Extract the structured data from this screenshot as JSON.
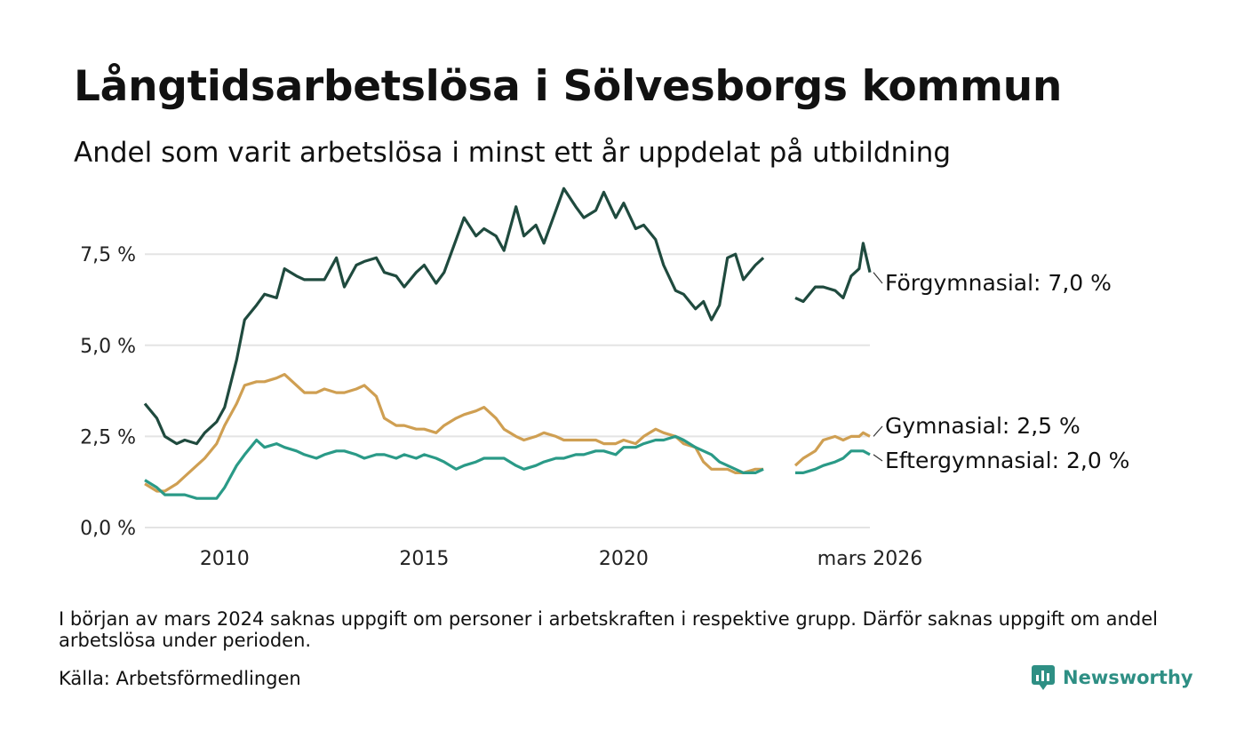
{
  "title": "Långtidsarbetslösa i Sölvesborgs kommun",
  "subtitle": "Andel som varit arbetslösa i minst ett år uppdelat på utbildning",
  "footnote": "I början av mars 2024 saknas uppgift om personer i arbetskraften i respektive grupp. Därför saknas uppgift om andel arbetslösa under perioden.",
  "source": "Källa: Arbetsförmedlingen",
  "brand": "Newsworthy",
  "colors": {
    "forgymnasial": "#1f4a3e",
    "gymnasial": "#cf9f52",
    "eftergymnasial": "#2a9a87",
    "grid": "#e4e4e4",
    "brand": "#2e8f84"
  },
  "chart_data": {
    "type": "line",
    "title": "Långtidsarbetslösa i Sölvesborgs kommun",
    "xlabel": "",
    "ylabel": "",
    "x_range": [
      2008.0,
      2026.17
    ],
    "ylim": [
      0,
      9.6
    ],
    "y_ticks": [
      0,
      2.5,
      5.0,
      7.5
    ],
    "y_tick_labels": [
      "0,0 %",
      "2,5 %",
      "5,0 %",
      "7,5 %"
    ],
    "x_ticks": [
      2010,
      2015,
      2020,
      2026.17
    ],
    "x_tick_labels": [
      "2010",
      "2015",
      "2020",
      "mars 2026"
    ],
    "gap": [
      2024.0,
      2024.3
    ],
    "series": [
      {
        "name": "Förgymnasial",
        "end_label": "Förgymnasial: 7,0 %",
        "color_key": "forgymnasial",
        "points": [
          [
            2008.0,
            3.4
          ],
          [
            2008.3,
            3.0
          ],
          [
            2008.5,
            2.5
          ],
          [
            2008.8,
            2.3
          ],
          [
            2009.0,
            2.4
          ],
          [
            2009.3,
            2.3
          ],
          [
            2009.5,
            2.6
          ],
          [
            2009.8,
            2.9
          ],
          [
            2010.0,
            3.3
          ],
          [
            2010.3,
            4.6
          ],
          [
            2010.5,
            5.7
          ],
          [
            2010.8,
            6.1
          ],
          [
            2011.0,
            6.4
          ],
          [
            2011.3,
            6.3
          ],
          [
            2011.5,
            7.1
          ],
          [
            2011.8,
            6.9
          ],
          [
            2012.0,
            6.8
          ],
          [
            2012.3,
            6.8
          ],
          [
            2012.5,
            6.8
          ],
          [
            2012.8,
            7.4
          ],
          [
            2013.0,
            6.6
          ],
          [
            2013.3,
            7.2
          ],
          [
            2013.5,
            7.3
          ],
          [
            2013.8,
            7.4
          ],
          [
            2014.0,
            7.0
          ],
          [
            2014.3,
            6.9
          ],
          [
            2014.5,
            6.6
          ],
          [
            2014.8,
            7.0
          ],
          [
            2015.0,
            7.2
          ],
          [
            2015.3,
            6.7
          ],
          [
            2015.5,
            7.0
          ],
          [
            2015.8,
            7.9
          ],
          [
            2016.0,
            8.5
          ],
          [
            2016.3,
            8.0
          ],
          [
            2016.5,
            8.2
          ],
          [
            2016.8,
            8.0
          ],
          [
            2017.0,
            7.6
          ],
          [
            2017.3,
            8.8
          ],
          [
            2017.5,
            8.0
          ],
          [
            2017.8,
            8.3
          ],
          [
            2018.0,
            7.8
          ],
          [
            2018.3,
            8.7
          ],
          [
            2018.5,
            9.3
          ],
          [
            2018.8,
            8.8
          ],
          [
            2019.0,
            8.5
          ],
          [
            2019.3,
            8.7
          ],
          [
            2019.5,
            9.2
          ],
          [
            2019.8,
            8.5
          ],
          [
            2020.0,
            8.9
          ],
          [
            2020.3,
            8.2
          ],
          [
            2020.5,
            8.3
          ],
          [
            2020.8,
            7.9
          ],
          [
            2021.0,
            7.2
          ],
          [
            2021.3,
            6.5
          ],
          [
            2021.5,
            6.4
          ],
          [
            2021.8,
            6.0
          ],
          [
            2022.0,
            6.2
          ],
          [
            2022.2,
            5.7
          ],
          [
            2022.4,
            6.1
          ],
          [
            2022.6,
            7.4
          ],
          [
            2022.8,
            7.5
          ],
          [
            2023.0,
            6.8
          ],
          [
            2023.3,
            7.2
          ],
          [
            2023.5,
            7.4
          ],
          [
            2024.3,
            6.3
          ],
          [
            2024.5,
            6.2
          ],
          [
            2024.8,
            6.6
          ],
          [
            2025.0,
            6.6
          ],
          [
            2025.3,
            6.5
          ],
          [
            2025.5,
            6.3
          ],
          [
            2025.7,
            6.9
          ],
          [
            2025.9,
            7.1
          ],
          [
            2026.0,
            7.8
          ],
          [
            2026.17,
            7.0
          ]
        ]
      },
      {
        "name": "Gymnasial",
        "end_label": "Gymnasial: 2,5 %",
        "color_key": "gymnasial",
        "points": [
          [
            2008.0,
            1.2
          ],
          [
            2008.3,
            1.0
          ],
          [
            2008.5,
            1.0
          ],
          [
            2008.8,
            1.2
          ],
          [
            2009.0,
            1.4
          ],
          [
            2009.3,
            1.7
          ],
          [
            2009.5,
            1.9
          ],
          [
            2009.8,
            2.3
          ],
          [
            2010.0,
            2.8
          ],
          [
            2010.3,
            3.4
          ],
          [
            2010.5,
            3.9
          ],
          [
            2010.8,
            4.0
          ],
          [
            2011.0,
            4.0
          ],
          [
            2011.3,
            4.1
          ],
          [
            2011.5,
            4.2
          ],
          [
            2011.8,
            3.9
          ],
          [
            2012.0,
            3.7
          ],
          [
            2012.3,
            3.7
          ],
          [
            2012.5,
            3.8
          ],
          [
            2012.8,
            3.7
          ],
          [
            2013.0,
            3.7
          ],
          [
            2013.3,
            3.8
          ],
          [
            2013.5,
            3.9
          ],
          [
            2013.8,
            3.6
          ],
          [
            2014.0,
            3.0
          ],
          [
            2014.3,
            2.8
          ],
          [
            2014.5,
            2.8
          ],
          [
            2014.8,
            2.7
          ],
          [
            2015.0,
            2.7
          ],
          [
            2015.3,
            2.6
          ],
          [
            2015.5,
            2.8
          ],
          [
            2015.8,
            3.0
          ],
          [
            2016.0,
            3.1
          ],
          [
            2016.3,
            3.2
          ],
          [
            2016.5,
            3.3
          ],
          [
            2016.8,
            3.0
          ],
          [
            2017.0,
            2.7
          ],
          [
            2017.3,
            2.5
          ],
          [
            2017.5,
            2.4
          ],
          [
            2017.8,
            2.5
          ],
          [
            2018.0,
            2.6
          ],
          [
            2018.3,
            2.5
          ],
          [
            2018.5,
            2.4
          ],
          [
            2018.8,
            2.4
          ],
          [
            2019.0,
            2.4
          ],
          [
            2019.3,
            2.4
          ],
          [
            2019.5,
            2.3
          ],
          [
            2019.8,
            2.3
          ],
          [
            2020.0,
            2.4
          ],
          [
            2020.3,
            2.3
          ],
          [
            2020.5,
            2.5
          ],
          [
            2020.8,
            2.7
          ],
          [
            2021.0,
            2.6
          ],
          [
            2021.3,
            2.5
          ],
          [
            2021.5,
            2.3
          ],
          [
            2021.8,
            2.2
          ],
          [
            2022.0,
            1.8
          ],
          [
            2022.2,
            1.6
          ],
          [
            2022.4,
            1.6
          ],
          [
            2022.6,
            1.6
          ],
          [
            2022.8,
            1.5
          ],
          [
            2023.0,
            1.5
          ],
          [
            2023.3,
            1.6
          ],
          [
            2023.5,
            1.6
          ],
          [
            2024.3,
            1.7
          ],
          [
            2024.5,
            1.9
          ],
          [
            2024.8,
            2.1
          ],
          [
            2025.0,
            2.4
          ],
          [
            2025.3,
            2.5
          ],
          [
            2025.5,
            2.4
          ],
          [
            2025.7,
            2.5
          ],
          [
            2025.9,
            2.5
          ],
          [
            2026.0,
            2.6
          ],
          [
            2026.17,
            2.5
          ]
        ]
      },
      {
        "name": "Eftergymnasial",
        "end_label": "Eftergymnasial: 2,0 %",
        "color_key": "eftergymnasial",
        "points": [
          [
            2008.0,
            1.3
          ],
          [
            2008.3,
            1.1
          ],
          [
            2008.5,
            0.9
          ],
          [
            2008.8,
            0.9
          ],
          [
            2009.0,
            0.9
          ],
          [
            2009.3,
            0.8
          ],
          [
            2009.5,
            0.8
          ],
          [
            2009.8,
            0.8
          ],
          [
            2010.0,
            1.1
          ],
          [
            2010.3,
            1.7
          ],
          [
            2010.5,
            2.0
          ],
          [
            2010.8,
            2.4
          ],
          [
            2011.0,
            2.2
          ],
          [
            2011.3,
            2.3
          ],
          [
            2011.5,
            2.2
          ],
          [
            2011.8,
            2.1
          ],
          [
            2012.0,
            2.0
          ],
          [
            2012.3,
            1.9
          ],
          [
            2012.5,
            2.0
          ],
          [
            2012.8,
            2.1
          ],
          [
            2013.0,
            2.1
          ],
          [
            2013.3,
            2.0
          ],
          [
            2013.5,
            1.9
          ],
          [
            2013.8,
            2.0
          ],
          [
            2014.0,
            2.0
          ],
          [
            2014.3,
            1.9
          ],
          [
            2014.5,
            2.0
          ],
          [
            2014.8,
            1.9
          ],
          [
            2015.0,
            2.0
          ],
          [
            2015.3,
            1.9
          ],
          [
            2015.5,
            1.8
          ],
          [
            2015.8,
            1.6
          ],
          [
            2016.0,
            1.7
          ],
          [
            2016.3,
            1.8
          ],
          [
            2016.5,
            1.9
          ],
          [
            2016.8,
            1.9
          ],
          [
            2017.0,
            1.9
          ],
          [
            2017.3,
            1.7
          ],
          [
            2017.5,
            1.6
          ],
          [
            2017.8,
            1.7
          ],
          [
            2018.0,
            1.8
          ],
          [
            2018.3,
            1.9
          ],
          [
            2018.5,
            1.9
          ],
          [
            2018.8,
            2.0
          ],
          [
            2019.0,
            2.0
          ],
          [
            2019.3,
            2.1
          ],
          [
            2019.5,
            2.1
          ],
          [
            2019.8,
            2.0
          ],
          [
            2020.0,
            2.2
          ],
          [
            2020.3,
            2.2
          ],
          [
            2020.5,
            2.3
          ],
          [
            2020.8,
            2.4
          ],
          [
            2021.0,
            2.4
          ],
          [
            2021.3,
            2.5
          ],
          [
            2021.5,
            2.4
          ],
          [
            2021.8,
            2.2
          ],
          [
            2022.0,
            2.1
          ],
          [
            2022.2,
            2.0
          ],
          [
            2022.4,
            1.8
          ],
          [
            2022.6,
            1.7
          ],
          [
            2022.8,
            1.6
          ],
          [
            2023.0,
            1.5
          ],
          [
            2023.3,
            1.5
          ],
          [
            2023.5,
            1.6
          ],
          [
            2024.3,
            1.5
          ],
          [
            2024.5,
            1.5
          ],
          [
            2024.8,
            1.6
          ],
          [
            2025.0,
            1.7
          ],
          [
            2025.3,
            1.8
          ],
          [
            2025.5,
            1.9
          ],
          [
            2025.7,
            2.1
          ],
          [
            2025.9,
            2.1
          ],
          [
            2026.0,
            2.1
          ],
          [
            2026.17,
            2.0
          ]
        ]
      }
    ]
  }
}
